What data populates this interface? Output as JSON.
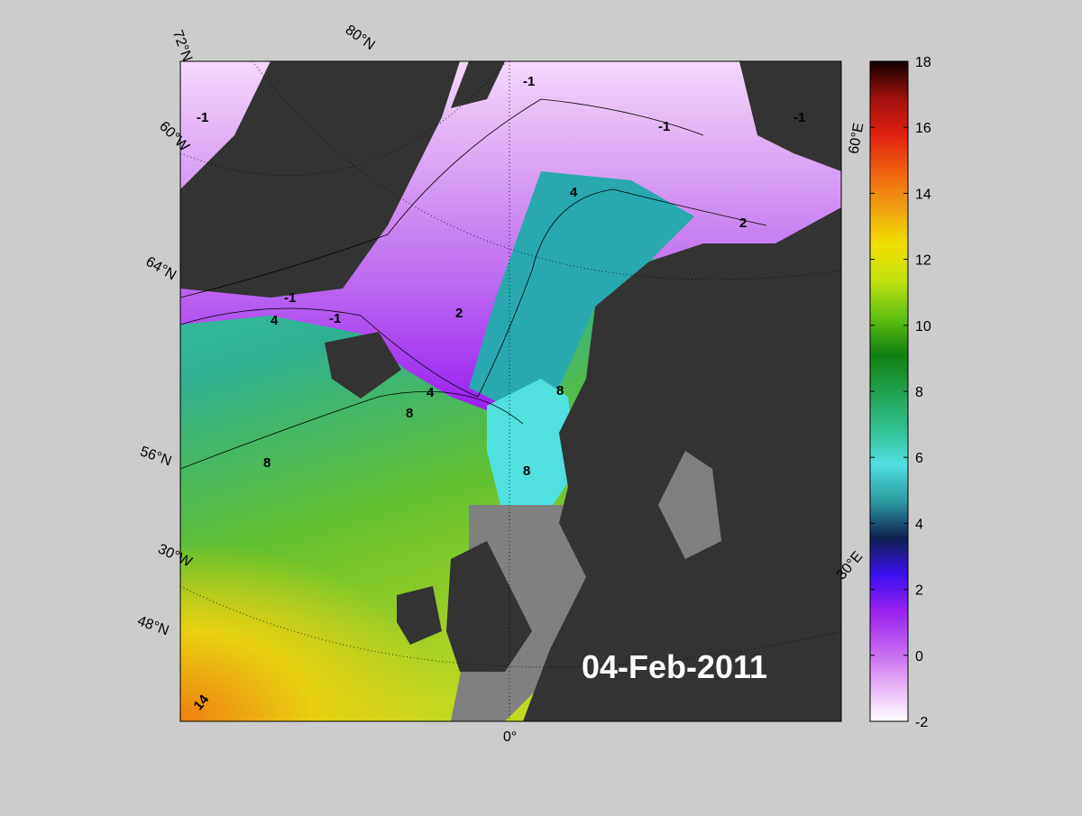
{
  "map": {
    "date": "04-Feb-2011",
    "grid_labels": [
      "72°N",
      "80°N",
      "60°W",
      "64°N",
      "56°N",
      "30°W",
      "48°N",
      "0°",
      "30°E",
      "60°E"
    ],
    "contour_labels": [
      "-1",
      "-1",
      "-1",
      "-1",
      "-1",
      "-1",
      "4",
      "4",
      "2",
      "2",
      "4",
      "8",
      "8",
      "8",
      "8",
      "14"
    ]
  },
  "colorbar": {
    "lim": [
      -2,
      18
    ],
    "ticks": [
      -2,
      0,
      2,
      4,
      6,
      8,
      10,
      12,
      14,
      16,
      18
    ],
    "colors": [
      "#ffffff",
      "#e6b0f5",
      "#c060f0",
      "#9a20f0",
      "#3a10f0",
      "#102050",
      "#2a9aa0",
      "#50e0e0",
      "#30c090",
      "#20a050",
      "#108010",
      "#60c010",
      "#c0e010",
      "#f0e000",
      "#f0a010",
      "#f06010",
      "#e02010",
      "#a01010",
      "#100000"
    ]
  }
}
